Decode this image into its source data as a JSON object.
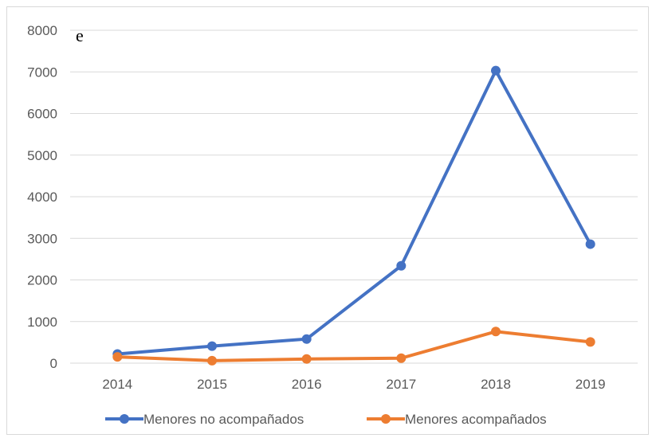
{
  "chart_data": {
    "type": "line",
    "corner_mark": "e",
    "categories": [
      "2014",
      "2015",
      "2016",
      "2017",
      "2018",
      "2019"
    ],
    "series": [
      {
        "name": "Menores no acompañados",
        "color": "#4472c4",
        "values": [
          220,
          410,
          580,
          2340,
          7030,
          2860
        ]
      },
      {
        "name": "Menores acompañados",
        "color": "#ed7d31",
        "values": [
          150,
          60,
          100,
          120,
          760,
          510
        ]
      }
    ],
    "y_ticks": [
      "0",
      "1000",
      "2000",
      "3000",
      "4000",
      "5000",
      "6000",
      "7000",
      "8000"
    ],
    "ylim": [
      0,
      8000
    ],
    "grid": true,
    "legend_position": "bottom"
  }
}
